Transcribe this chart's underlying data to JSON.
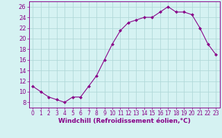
{
  "x": [
    0,
    1,
    2,
    3,
    4,
    5,
    6,
    7,
    8,
    9,
    10,
    11,
    12,
    13,
    14,
    15,
    16,
    17,
    18,
    19,
    20,
    21,
    22,
    23
  ],
  "y": [
    11,
    10,
    9,
    8.5,
    8,
    9,
    9,
    11,
    13,
    16,
    19,
    21.5,
    23,
    23.5,
    24,
    24,
    25,
    26,
    25,
    25,
    24.5,
    22,
    19,
    17
  ],
  "line_color": "#880088",
  "marker": "D",
  "marker_size": 2.2,
  "bg_color": "#d5f2f2",
  "grid_color": "#b0d8d8",
  "xlabel": "Windchill (Refroidissement éolien,°C)",
  "xlim": [
    -0.5,
    23.5
  ],
  "ylim": [
    7,
    27
  ],
  "yticks": [
    8,
    10,
    12,
    14,
    16,
    18,
    20,
    22,
    24,
    26
  ],
  "xticks": [
    0,
    1,
    2,
    3,
    4,
    5,
    6,
    7,
    8,
    9,
    10,
    11,
    12,
    13,
    14,
    15,
    16,
    17,
    18,
    19,
    20,
    21,
    22,
    23
  ],
  "xlabel_color": "#880088",
  "xlabel_fontsize": 6.5,
  "ytick_fontsize": 6.0,
  "xtick_fontsize": 5.5,
  "tick_color": "#880088",
  "linewidth": 0.8
}
